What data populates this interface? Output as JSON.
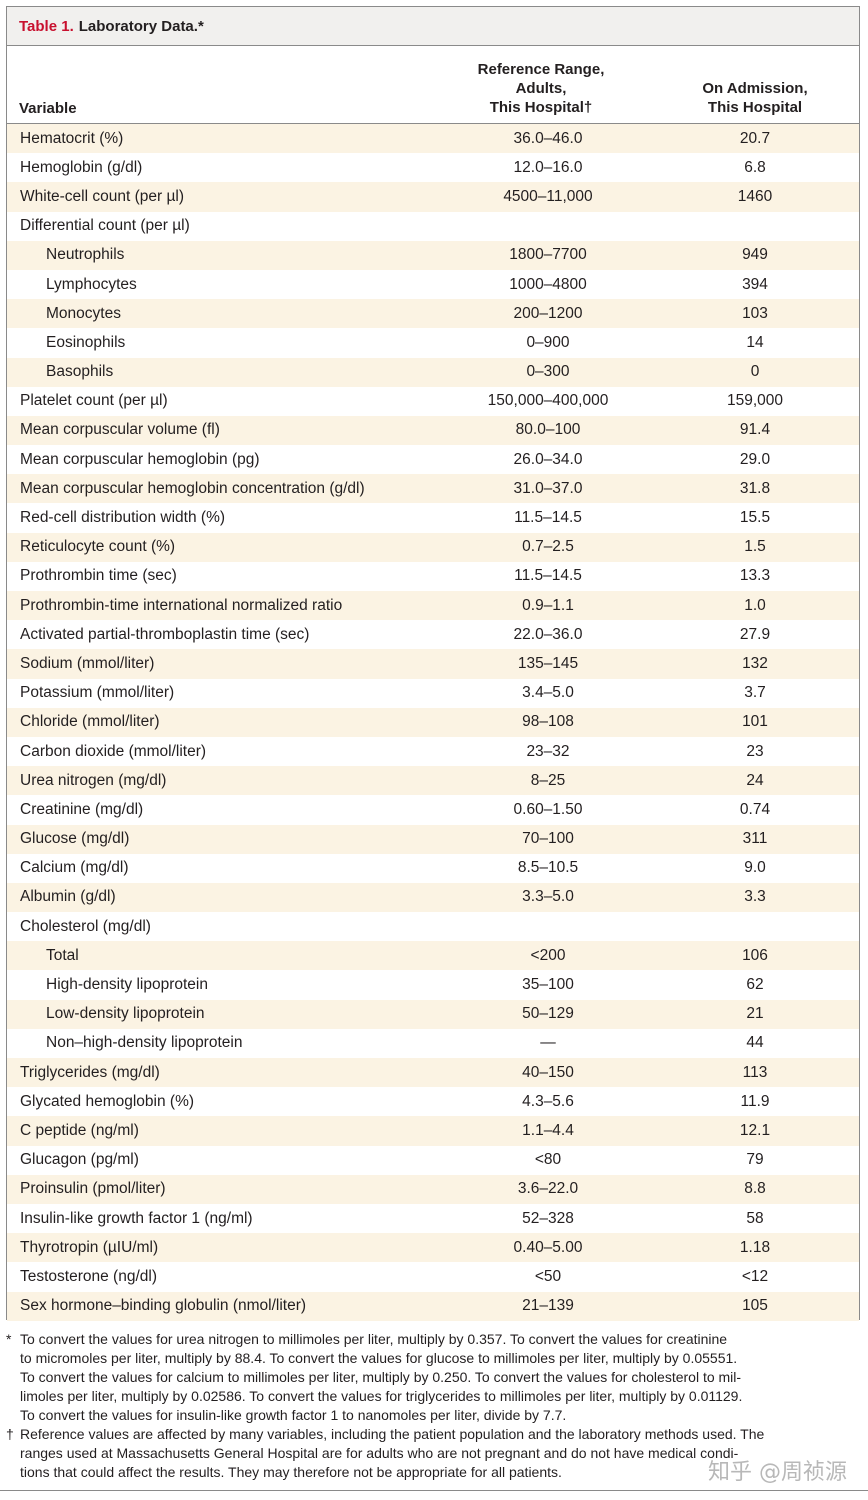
{
  "table": {
    "label": "Table 1.",
    "title": "Laboratory Data.*",
    "columns": {
      "variable": "Variable",
      "reference": [
        "Reference Range,",
        "Adults,",
        "This Hospital†"
      ],
      "admission": [
        "On Admission,",
        "This Hospital"
      ]
    },
    "rows": [
      {
        "name": "Hematocrit (%)",
        "ref": "36.0–46.0",
        "adm": "20.7",
        "indent": false
      },
      {
        "name": "Hemoglobin (g/dl)",
        "ref": "12.0–16.0",
        "adm": "6.8",
        "indent": false
      },
      {
        "name": "White-cell count (per µl)",
        "ref": "4500–11,000",
        "adm": "1460",
        "indent": false
      },
      {
        "name": "Differential count (per µl)",
        "ref": "",
        "adm": "",
        "indent": false
      },
      {
        "name": "Neutrophils",
        "ref": "1800–7700",
        "adm": "949",
        "indent": true
      },
      {
        "name": "Lymphocytes",
        "ref": "1000–4800",
        "adm": "394",
        "indent": true
      },
      {
        "name": "Monocytes",
        "ref": "200–1200",
        "adm": "103",
        "indent": true
      },
      {
        "name": "Eosinophils",
        "ref": "0–900",
        "adm": "14",
        "indent": true
      },
      {
        "name": "Basophils",
        "ref": "0–300",
        "adm": "0",
        "indent": true
      },
      {
        "name": "Platelet count (per µl)",
        "ref": "150,000–400,000",
        "adm": "159,000",
        "indent": false
      },
      {
        "name": "Mean corpuscular volume (fl)",
        "ref": "80.0–100",
        "adm": "91.4",
        "indent": false
      },
      {
        "name": "Mean corpuscular hemoglobin (pg)",
        "ref": "26.0–34.0",
        "adm": "29.0",
        "indent": false
      },
      {
        "name": "Mean corpuscular hemoglobin concentration (g/dl)",
        "ref": "31.0–37.0",
        "adm": "31.8",
        "indent": false
      },
      {
        "name": "Red-cell distribution width (%)",
        "ref": "11.5–14.5",
        "adm": "15.5",
        "indent": false
      },
      {
        "name": "Reticulocyte count (%)",
        "ref": "0.7–2.5",
        "adm": "1.5",
        "indent": false
      },
      {
        "name": "Prothrombin time (sec)",
        "ref": "11.5–14.5",
        "adm": "13.3",
        "indent": false
      },
      {
        "name": "Prothrombin-time international normalized ratio",
        "ref": "0.9–1.1",
        "adm": "1.0",
        "indent": false
      },
      {
        "name": "Activated partial-thromboplastin time (sec)",
        "ref": "22.0–36.0",
        "adm": "27.9",
        "indent": false
      },
      {
        "name": "Sodium (mmol/liter)",
        "ref": "135–145",
        "adm": "132",
        "indent": false
      },
      {
        "name": "Potassium (mmol/liter)",
        "ref": "3.4–5.0",
        "adm": "3.7",
        "indent": false
      },
      {
        "name": "Chloride (mmol/liter)",
        "ref": "98–108",
        "adm": "101",
        "indent": false
      },
      {
        "name": "Carbon dioxide (mmol/liter)",
        "ref": "23–32",
        "adm": "23",
        "indent": false
      },
      {
        "name": "Urea nitrogen (mg/dl)",
        "ref": "8–25",
        "adm": "24",
        "indent": false
      },
      {
        "name": "Creatinine (mg/dl)",
        "ref": "0.60–1.50",
        "adm": "0.74",
        "indent": false
      },
      {
        "name": "Glucose (mg/dl)",
        "ref": "70–100",
        "adm": "311",
        "indent": false
      },
      {
        "name": "Calcium (mg/dl)",
        "ref": "8.5–10.5",
        "adm": "9.0",
        "indent": false
      },
      {
        "name": "Albumin (g/dl)",
        "ref": "3.3–5.0",
        "adm": "3.3",
        "indent": false
      },
      {
        "name": "Cholesterol (mg/dl)",
        "ref": "",
        "adm": "",
        "indent": false
      },
      {
        "name": "Total",
        "ref": "<200",
        "adm": "106",
        "indent": true
      },
      {
        "name": "High-density lipoprotein",
        "ref": "35–100",
        "adm": "62",
        "indent": true
      },
      {
        "name": "Low-density lipoprotein",
        "ref": "50–129",
        "adm": "21",
        "indent": true
      },
      {
        "name": "Non–high-density lipoprotein",
        "ref": "—",
        "adm": "44",
        "indent": true
      },
      {
        "name": "Triglycerides (mg/dl)",
        "ref": "40–150",
        "adm": "113",
        "indent": false
      },
      {
        "name": "Glycated hemoglobin (%)",
        "ref": "4.3–5.6",
        "adm": "11.9",
        "indent": false
      },
      {
        "name": "C peptide (ng/ml)",
        "ref": "1.1–4.4",
        "adm": "12.1",
        "indent": false
      },
      {
        "name": "Glucagon (pg/ml)",
        "ref": "<80",
        "adm": "79",
        "indent": false
      },
      {
        "name": "Proinsulin (pmol/liter)",
        "ref": "3.6–22.0",
        "adm": "8.8",
        "indent": false
      },
      {
        "name": "Insulin-like growth factor 1 (ng/ml)",
        "ref": "52–328",
        "adm": "58",
        "indent": false
      },
      {
        "name": "Thyrotropin (µIU/ml)",
        "ref": "0.40–5.00",
        "adm": "1.18",
        "indent": false
      },
      {
        "name": "Testosterone (ng/dl)",
        "ref": "<50",
        "adm": "<12",
        "indent": false
      },
      {
        "name": "Sex hormone–binding globulin (nmol/liter)",
        "ref": "21–139",
        "adm": "105",
        "indent": false
      }
    ]
  },
  "footnotes": [
    {
      "mark": "*",
      "lines": [
        "To convert the values for urea nitrogen to millimoles per liter, multiply by 0.357. To convert the values for creatinine",
        "to micromoles per liter, multiply by 88.4. To convert the values for glucose to millimoles per liter, multiply by 0.05551.",
        "To convert the values for calcium to millimoles per liter, multiply by 0.250. To convert the values for cholesterol to mil-",
        "limoles per liter, multiply by 0.02586. To convert the values for triglycerides to millimoles per liter, multiply by 0.01129.",
        "To convert the values for insulin-like growth factor 1 to nanomoles per liter, divide by 7.7."
      ]
    },
    {
      "mark": "†",
      "lines": [
        "Reference values are affected by many variables, including the patient population and the laboratory methods used. The",
        "ranges used at Massachusetts General Hospital are for adults who are not pregnant and do not have medical condi-",
        "tions that could affect the results. They may therefore not be appropriate for all patients."
      ]
    }
  ],
  "watermark": "知乎 @周祯源",
  "colors": {
    "label": "#c8102e",
    "shade": "#fbf3e3",
    "title_bar": "#f1f0ee"
  }
}
